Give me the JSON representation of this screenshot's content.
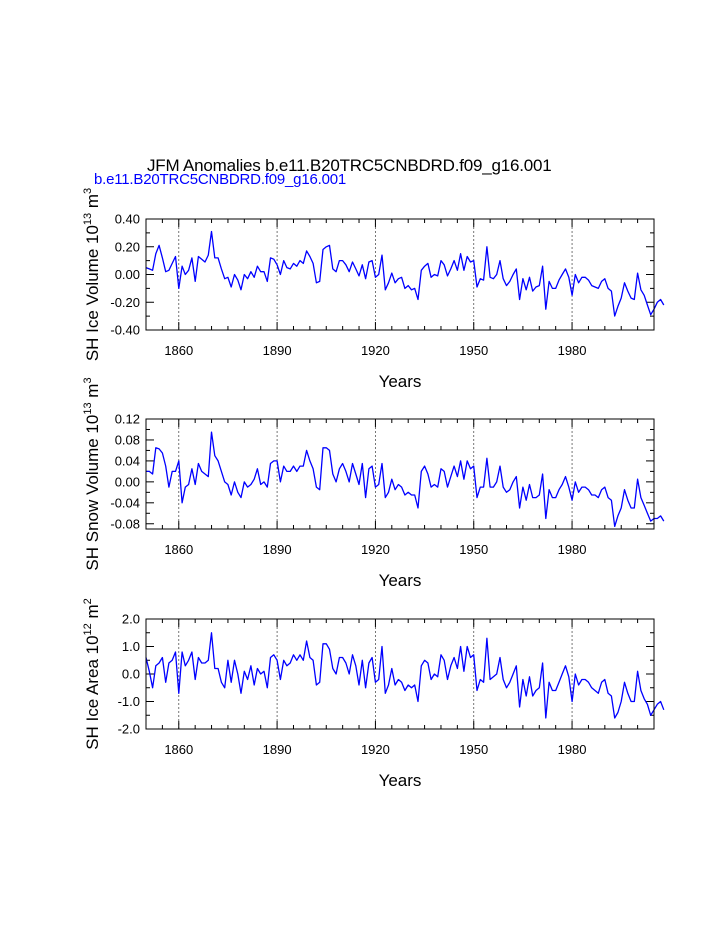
{
  "title": "JFM Anomalies b.e11.B20TRC5CNBDRD.f09_g16.001",
  "subtitle": "b.e11.B20TRC5CNBDRD.f09_g16.001",
  "colors": {
    "line": "#0000ff",
    "subtitle": "#0000ff",
    "axis": "#000000",
    "grid": "#555555"
  },
  "chart_data": [
    {
      "type": "line",
      "id": "ice-volume",
      "ylabel": "SH Ice Volume 10",
      "ylabel_exp": "13",
      "ylabel_unit": "m",
      "ylabel_unit_exp": "3",
      "xlabel": "Years",
      "xlim": [
        1850,
        2005
      ],
      "ylim": [
        -0.4,
        0.4
      ],
      "yticks": [
        -0.4,
        -0.2,
        0.0,
        0.2,
        0.4
      ],
      "ytick_labels": [
        "-0.40",
        "-0.20",
        "0.00",
        "0.20",
        "0.40"
      ],
      "xticks": [
        1860,
        1890,
        1920,
        1950,
        1980
      ],
      "xtick_labels": [
        "1860",
        "1890",
        "1920",
        "1950",
        "1980"
      ],
      "grid_x": [
        1860,
        1890,
        1920,
        1950,
        1980
      ],
      "x_start": 1850,
      "series": [
        {
          "name": "SH Ice Volume",
          "values": [
            0.05,
            0.04,
            0.03,
            0.15,
            0.21,
            0.12,
            0.02,
            0.03,
            0.08,
            0.13,
            -0.1,
            0.06,
            0.0,
            0.03,
            0.12,
            -0.05,
            0.13,
            0.11,
            0.09,
            0.14,
            0.31,
            0.12,
            0.12,
            0.04,
            -0.03,
            -0.02,
            -0.09,
            0.0,
            -0.04,
            -0.11,
            0.0,
            -0.03,
            0.02,
            -0.02,
            0.06,
            0.02,
            0.02,
            -0.05,
            0.12,
            0.11,
            0.07,
            0.0,
            0.1,
            0.05,
            0.04,
            0.08,
            0.06,
            0.1,
            0.08,
            0.17,
            0.13,
            0.08,
            -0.06,
            -0.05,
            0.18,
            0.2,
            0.21,
            0.04,
            0.02,
            0.1,
            0.1,
            0.07,
            0.02,
            0.09,
            0.04,
            -0.01,
            0.07,
            -0.03,
            0.09,
            0.1,
            -0.02,
            0.0,
            0.14,
            -0.11,
            -0.06,
            0.01,
            -0.06,
            -0.03,
            -0.02,
            -0.1,
            -0.08,
            -0.11,
            -0.1,
            -0.18,
            0.03,
            0.06,
            0.08,
            -0.02,
            0.0,
            -0.01,
            0.1,
            0.07,
            -0.01,
            0.04,
            0.1,
            0.03,
            0.15,
            0.03,
            0.13,
            0.09,
            0.1,
            -0.09,
            -0.03,
            -0.04,
            0.2,
            -0.02,
            -0.03,
            0.0,
            0.1,
            -0.03,
            -0.08,
            -0.05,
            0.0,
            0.04,
            -0.18,
            -0.03,
            -0.11,
            -0.02,
            -0.12,
            -0.09,
            -0.08,
            0.06,
            -0.25,
            -0.05,
            -0.1,
            -0.1,
            -0.04,
            0.0,
            0.04,
            -0.02,
            -0.15,
            0.0,
            -0.06,
            -0.02,
            -0.02,
            -0.04,
            -0.08,
            -0.09,
            -0.1,
            -0.05,
            -0.03,
            -0.1,
            -0.12,
            -0.3,
            -0.23,
            -0.17,
            -0.06,
            -0.12,
            -0.17,
            -0.18,
            0.01,
            -0.11,
            -0.15,
            -0.22,
            -0.29,
            -0.25,
            -0.2,
            -0.18,
            -0.22
          ]
        }
      ]
    },
    {
      "type": "line",
      "id": "snow-volume",
      "ylabel": "SH Snow Volume 10",
      "ylabel_exp": "13",
      "ylabel_unit": "m",
      "ylabel_unit_exp": "3",
      "xlabel": "Years",
      "xlim": [
        1850,
        2005
      ],
      "ylim": [
        -0.09,
        0.12
      ],
      "yticks": [
        -0.08,
        -0.04,
        0.0,
        0.04,
        0.08,
        0.12
      ],
      "ytick_labels": [
        "-0.08",
        "-0.04",
        "0.00",
        "0.04",
        "0.08",
        "0.12"
      ],
      "xticks": [
        1860,
        1890,
        1920,
        1950,
        1980
      ],
      "xtick_labels": [
        "1860",
        "1890",
        "1920",
        "1950",
        "1980"
      ],
      "grid_x": [
        1860,
        1890,
        1920,
        1950,
        1980
      ],
      "x_start": 1850,
      "series": [
        {
          "name": "SH Snow Volume",
          "values": [
            0.02,
            0.02,
            0.015,
            0.065,
            0.063,
            0.055,
            0.03,
            -0.01,
            0.02,
            0.02,
            0.04,
            -0.04,
            -0.01,
            -0.005,
            0.025,
            -0.005,
            0.035,
            0.02,
            0.015,
            0.01,
            0.095,
            0.05,
            0.04,
            0.02,
            0.0,
            -0.005,
            -0.025,
            0.0,
            -0.02,
            -0.03,
            0.0,
            -0.01,
            -0.005,
            0.005,
            0.025,
            -0.005,
            0.0,
            -0.01,
            0.035,
            0.04,
            0.04,
            0.0,
            0.03,
            0.02,
            0.02,
            0.03,
            0.02,
            0.03,
            0.03,
            0.06,
            0.04,
            0.025,
            -0.01,
            -0.015,
            0.065,
            0.065,
            0.06,
            0.015,
            0.0,
            0.025,
            0.035,
            0.02,
            0.0,
            0.035,
            0.015,
            -0.005,
            0.035,
            -0.03,
            0.025,
            0.03,
            -0.01,
            -0.005,
            0.035,
            -0.03,
            -0.02,
            0.005,
            -0.015,
            -0.005,
            -0.01,
            -0.025,
            -0.02,
            -0.025,
            -0.025,
            -0.05,
            0.02,
            0.03,
            0.015,
            -0.01,
            -0.005,
            -0.01,
            0.025,
            0.02,
            -0.01,
            0.01,
            0.03,
            0.01,
            0.04,
            0.005,
            0.04,
            0.025,
            0.03,
            -0.03,
            -0.01,
            -0.01,
            0.045,
            -0.01,
            -0.01,
            0.0,
            0.03,
            -0.01,
            -0.02,
            -0.015,
            0.0,
            0.01,
            -0.05,
            -0.01,
            -0.035,
            -0.005,
            -0.03,
            -0.03,
            -0.025,
            0.015,
            -0.07,
            -0.015,
            -0.03,
            -0.03,
            -0.015,
            -0.005,
            0.01,
            -0.01,
            -0.035,
            0.0,
            -0.02,
            -0.01,
            -0.01,
            -0.015,
            -0.025,
            -0.025,
            -0.03,
            -0.015,
            -0.01,
            -0.03,
            -0.035,
            -0.085,
            -0.065,
            -0.05,
            -0.015,
            -0.035,
            -0.05,
            -0.05,
            0.005,
            -0.03,
            -0.045,
            -0.06,
            -0.075,
            -0.07,
            -0.07,
            -0.065,
            -0.075
          ]
        }
      ]
    },
    {
      "type": "line",
      "id": "ice-area",
      "ylabel": "SH Ice Area 10",
      "ylabel_exp": "12",
      "ylabel_unit": "m",
      "ylabel_unit_exp": "2",
      "xlabel": "Years",
      "xlim": [
        1850,
        2005
      ],
      "ylim": [
        -2.0,
        2.0
      ],
      "yticks": [
        -2.0,
        -1.0,
        0.0,
        1.0,
        2.0
      ],
      "ytick_labels": [
        "-2.0",
        "-1.0",
        "0.0",
        "1.0",
        "2.0"
      ],
      "xticks": [
        1860,
        1890,
        1920,
        1950,
        1980
      ],
      "xtick_labels": [
        "1860",
        "1890",
        "1920",
        "1950",
        "1980"
      ],
      "grid_x": [
        1860,
        1890,
        1920,
        1950,
        1980
      ],
      "x_start": 1850,
      "series": [
        {
          "name": "SH Ice Area",
          "values": [
            0.6,
            0.1,
            -0.5,
            0.3,
            0.4,
            0.6,
            -0.3,
            0.4,
            0.5,
            0.8,
            -0.7,
            0.8,
            0.3,
            0.5,
            0.8,
            -0.2,
            0.6,
            0.4,
            0.4,
            0.5,
            1.5,
            0.2,
            0.2,
            -0.3,
            -0.5,
            0.5,
            -0.3,
            0.5,
            0.0,
            -0.7,
            0.1,
            -0.2,
            0.3,
            -0.4,
            0.2,
            0.0,
            0.1,
            -0.5,
            0.6,
            0.7,
            0.5,
            -0.2,
            0.5,
            0.3,
            0.4,
            0.7,
            0.5,
            0.7,
            0.5,
            1.2,
            0.6,
            0.5,
            -0.4,
            -0.3,
            1.1,
            1.1,
            0.9,
            0.2,
            0.0,
            0.6,
            0.6,
            0.4,
            0.0,
            0.7,
            0.3,
            -0.4,
            0.5,
            -0.5,
            0.4,
            0.6,
            -0.3,
            -0.2,
            1.0,
            -0.7,
            -0.4,
            0.2,
            -0.4,
            -0.2,
            -0.3,
            -0.6,
            -0.4,
            -0.5,
            -0.4,
            -1.0,
            0.3,
            0.5,
            0.4,
            -0.2,
            0.0,
            -0.1,
            0.7,
            0.5,
            -0.2,
            0.3,
            0.6,
            0.2,
            1.0,
            0.1,
            1.0,
            0.6,
            0.7,
            -0.6,
            -0.2,
            -0.3,
            1.3,
            -0.2,
            -0.1,
            0.0,
            0.6,
            -0.2,
            -0.5,
            -0.3,
            0.0,
            0.3,
            -1.2,
            -0.2,
            -0.8,
            -0.1,
            -0.8,
            -0.6,
            -0.5,
            0.4,
            -1.6,
            -0.3,
            -0.6,
            -0.6,
            -0.3,
            0.0,
            0.3,
            -0.1,
            -1.0,
            0.0,
            -0.4,
            -0.2,
            -0.2,
            -0.3,
            -0.5,
            -0.6,
            -0.7,
            -0.3,
            -0.2,
            -0.7,
            -0.8,
            -1.6,
            -1.4,
            -1.0,
            -0.3,
            -0.7,
            -1.0,
            -1.0,
            0.1,
            -0.6,
            -0.9,
            -1.1,
            -1.5,
            -1.3,
            -1.1,
            -1.0,
            -1.3
          ]
        }
      ]
    }
  ]
}
